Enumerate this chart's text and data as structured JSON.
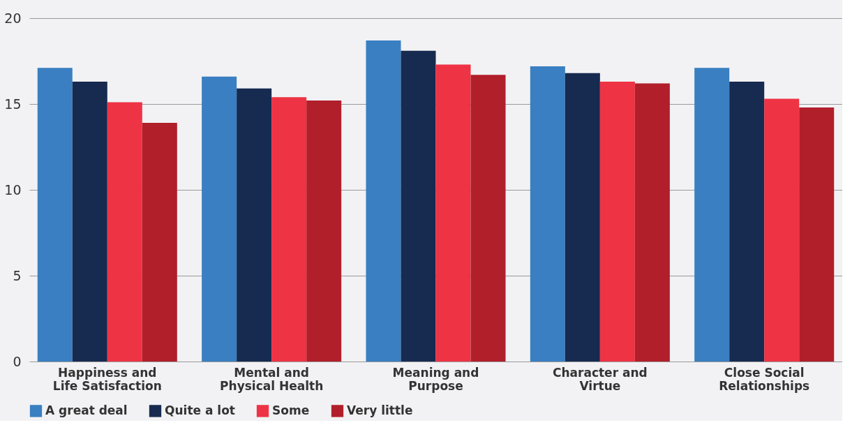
{
  "chart_data": {
    "type": "bar",
    "categories": [
      "Happiness and\nLife Satisfaction",
      "Mental and\nPhysical Health",
      "Meaning and\nPurpose",
      "Character and\nVirtue",
      "Close Social\nRelationships"
    ],
    "series": [
      {
        "name": "A great deal",
        "color": "#3a7fc1",
        "values": [
          17.1,
          16.6,
          18.7,
          17.2,
          17.1
        ]
      },
      {
        "name": "Quite a lot",
        "color": "#172a50",
        "values": [
          16.3,
          15.9,
          18.1,
          16.8,
          16.3
        ]
      },
      {
        "name": "Some",
        "color": "#ee3344",
        "values": [
          15.1,
          15.4,
          17.3,
          16.3,
          15.3
        ]
      },
      {
        "name": "Very little",
        "color": "#b11f2b",
        "values": [
          13.9,
          15.2,
          16.7,
          16.2,
          14.8
        ]
      }
    ],
    "ylim": [
      0,
      20
    ],
    "yticks": [
      0,
      5,
      10,
      15,
      20
    ],
    "grid": "y",
    "legend": "bottom"
  }
}
